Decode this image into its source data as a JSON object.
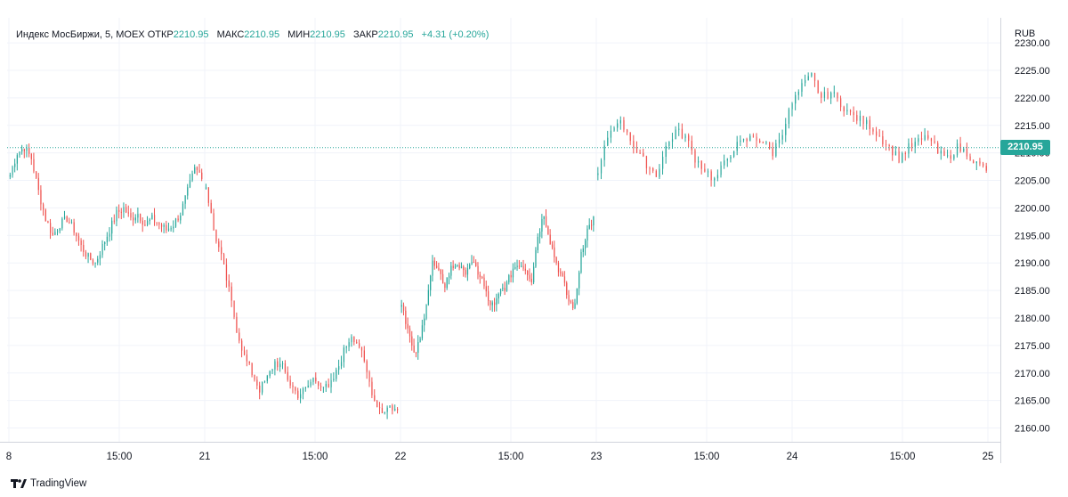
{
  "legend": {
    "symbol_label": "Индекс МосБиржи, 5, MOEX",
    "open_label": "ОТКР",
    "open_value": "2210.95",
    "high_label": "МАКС",
    "high_value": "2210.95",
    "low_label": "МИН",
    "low_value": "2210.95",
    "close_label": "ЗАКР",
    "close_value": "2210.95",
    "change_text": "+4.31 (+0.20%)"
  },
  "currency": "RUB",
  "last_price_label": "2210.95",
  "footer": {
    "brand": "TradingView",
    "icon": "tradingview-logo-icon"
  },
  "colors": {
    "up": "#26a69a",
    "down": "#ef5350",
    "grid": "#f0f3fa",
    "axis_text": "#131722",
    "last_line": "#26a69a"
  },
  "chart_data": {
    "type": "candlestick",
    "y_axis": {
      "min": 2157.5,
      "max": 2230.5,
      "ticks": [
        2160,
        2165,
        2170,
        2175,
        2180,
        2185,
        2190,
        2195,
        2200,
        2205,
        2210,
        2215,
        2220,
        2225,
        2230
      ],
      "position": "right"
    },
    "x_labels": [
      "8",
      "15:00",
      "21",
      "15:00",
      "22",
      "15:00",
      "23",
      "15:00",
      "24",
      "15:00",
      "25"
    ],
    "last_price": 2210.95,
    "grid": true,
    "sessions": [
      {
        "label": "8",
        "closes": [
          2206,
          2210,
          2211,
          2209,
          2203,
          2198,
          2195,
          2197,
          2198,
          2196,
          2193,
          2191,
          2190,
          2193,
          2196,
          2199,
          2200,
          2198,
          2199,
          2197,
          2198,
          2197,
          2196,
          2197,
          2199,
          2203,
          2207,
          2206
        ]
      },
      {
        "label": "21",
        "closes": [
          2204,
          2196,
          2191,
          2185,
          2178,
          2173,
          2170,
          2167,
          2169,
          2172,
          2171,
          2168,
          2166,
          2167,
          2169,
          2168,
          2167,
          2170,
          2174,
          2177,
          2175,
          2170,
          2165,
          2163,
          2164,
          2163
        ]
      },
      {
        "label": "22",
        "closes": [
          2183,
          2178,
          2173,
          2176,
          2183,
          2190,
          2188,
          2186,
          2189,
          2190,
          2188,
          2190,
          2189,
          2187,
          2183,
          2182,
          2185,
          2186,
          2189,
          2190,
          2189,
          2187,
          2195,
          2199,
          2194,
          2190,
          2187,
          2183,
          2182,
          2192,
          2196,
          2198
        ]
      },
      {
        "label": "23",
        "closes": [
          2206,
          2213,
          2216,
          2214,
          2210,
          2208,
          2206,
          2211,
          2214,
          2213,
          2209,
          2207,
          2205,
          2208,
          2211,
          2212,
          2213,
          2212,
          2210,
          2214,
          2219,
          2222,
          2224,
          2220,
          2221,
          2219,
          2217,
          2216,
          2215,
          2213,
          2211,
          2209,
          2211,
          2212,
          2213,
          2210,
          2209,
          2211,
          2210,
          2208,
          2207
        ]
      }
    ]
  }
}
